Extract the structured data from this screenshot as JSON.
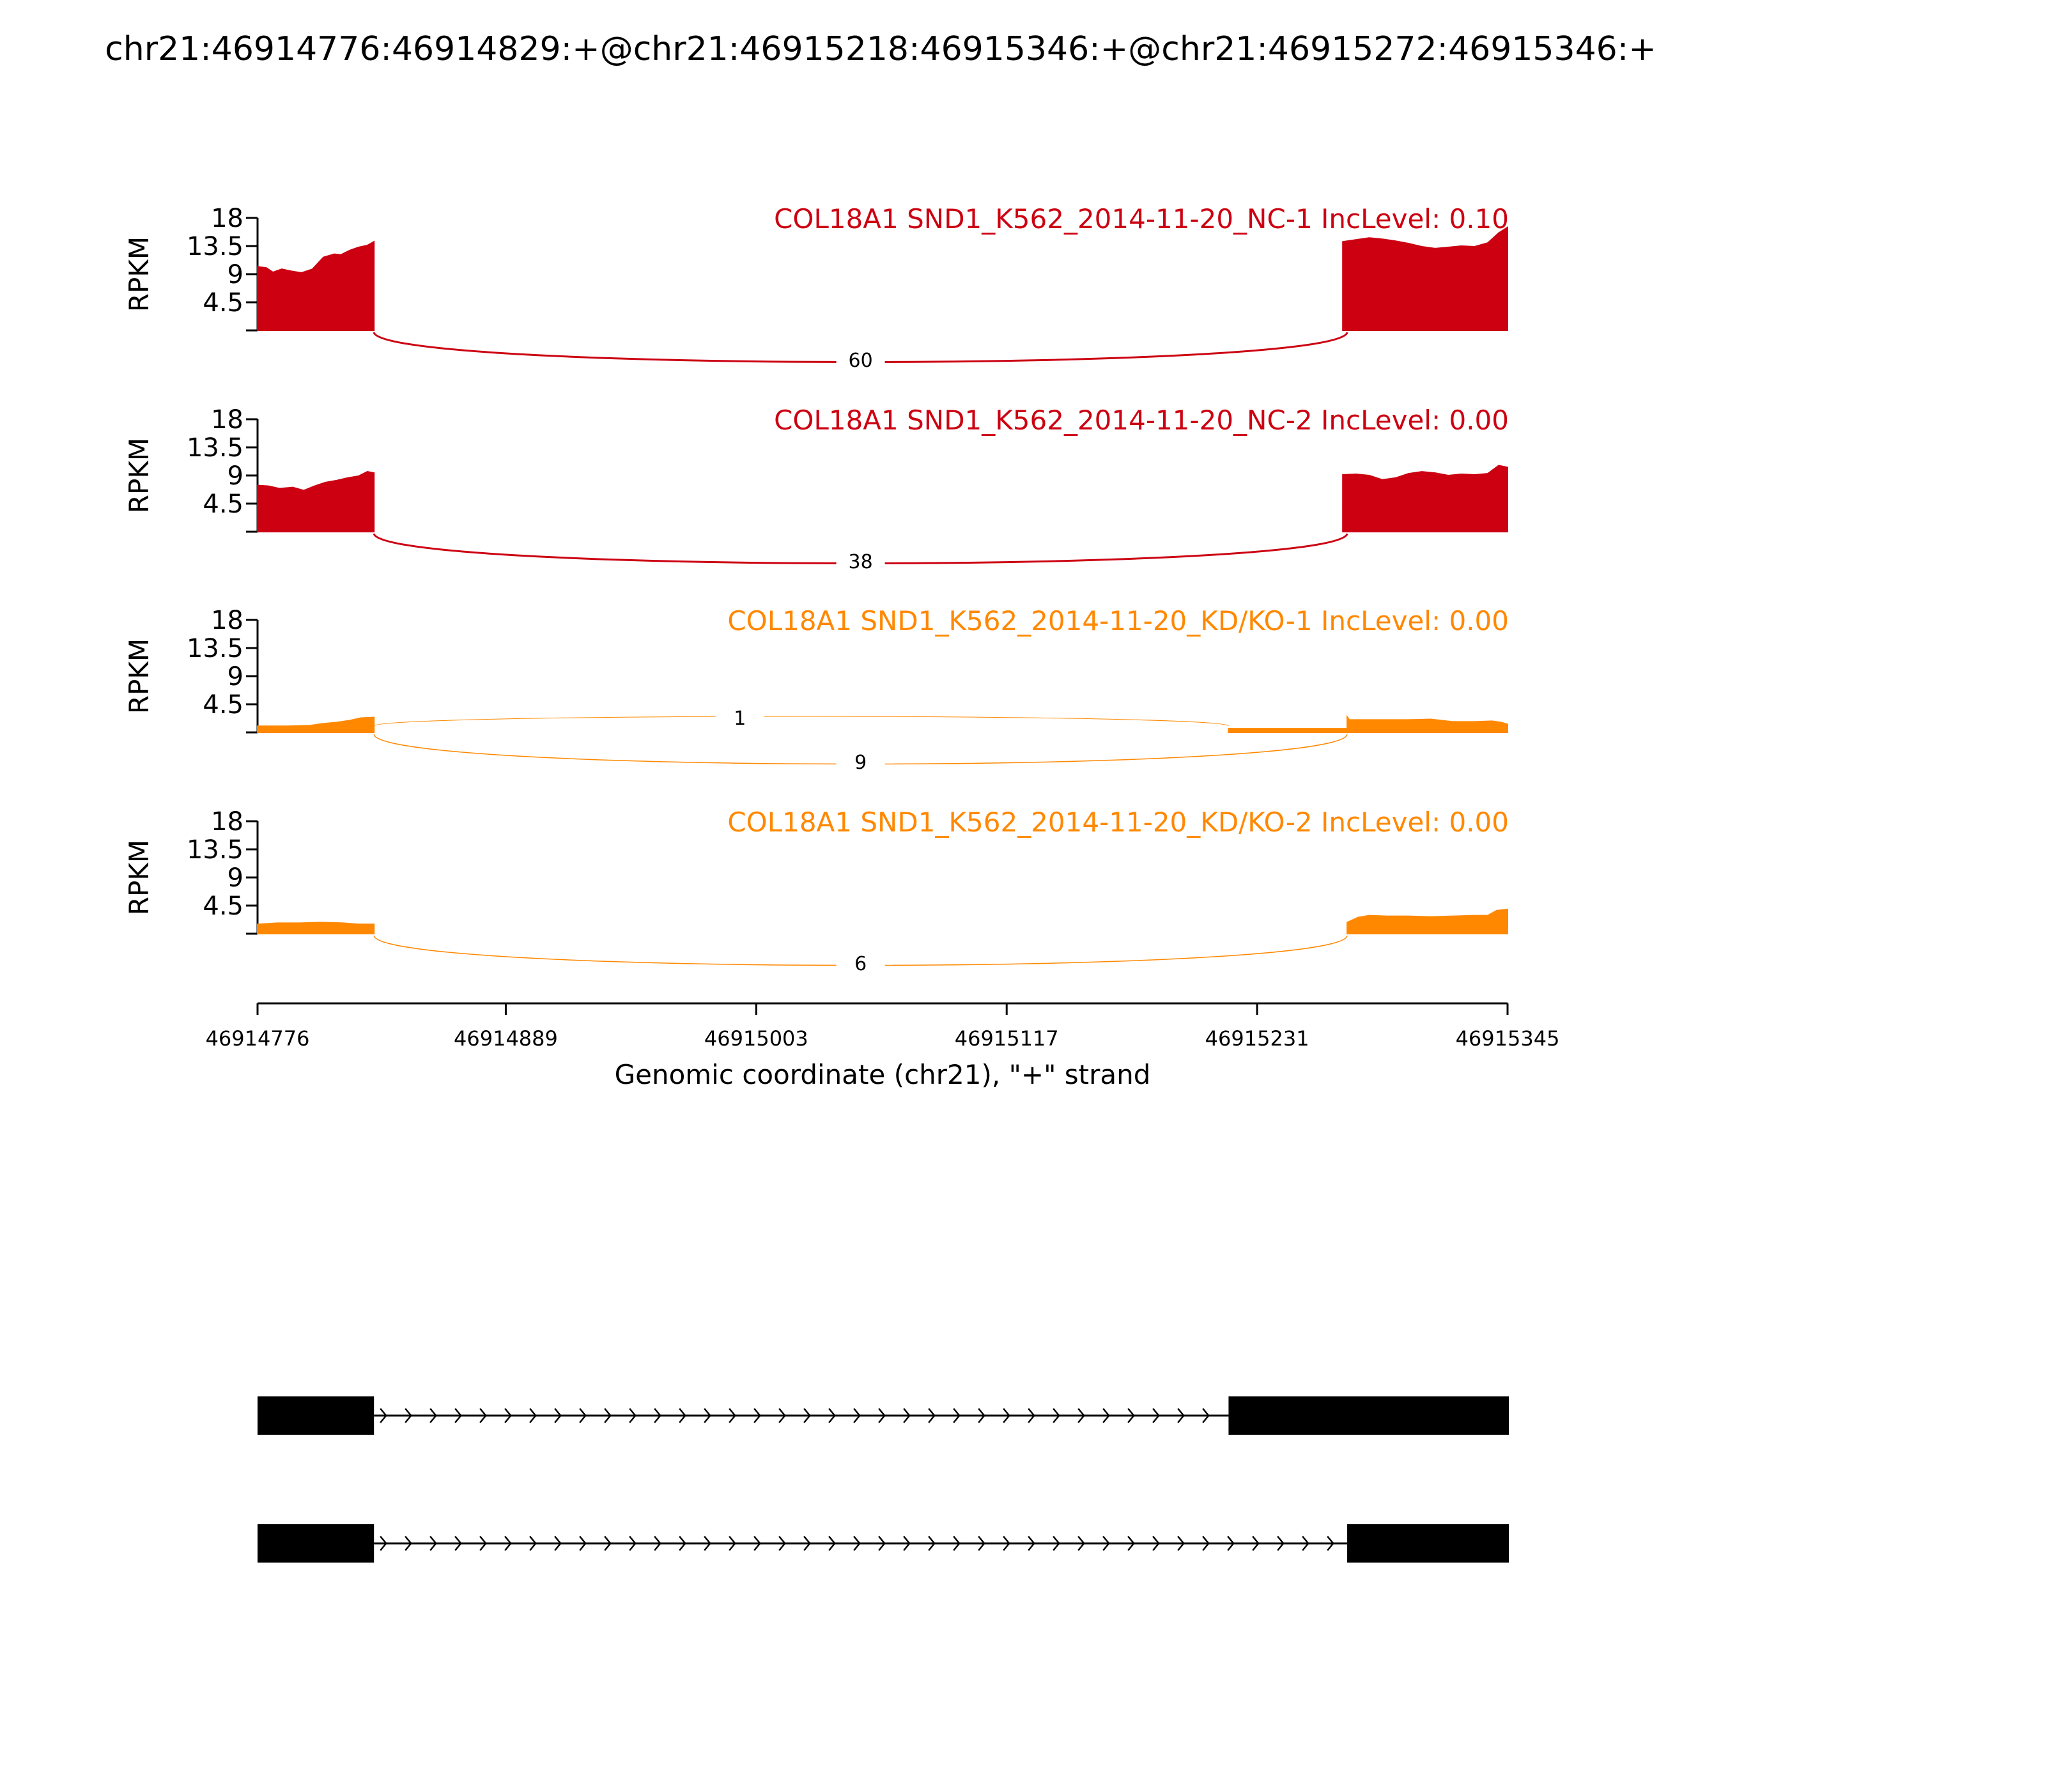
{
  "title": "chr21:46914776:46914829:+@chr21:46915218:46915346:+@chr21:46915272:46915346:+",
  "chart_data": {
    "type": "area",
    "title": "chr21:46914776:46914829:+@chr21:46915218:46915346:+@chr21:46915272:46915346:+",
    "xlabel": "Genomic coordinate (chr21), \"+\" strand",
    "xlim": [
      46914776,
      46915345
    ],
    "xticks": [
      46914776,
      46914889,
      46915003,
      46915117,
      46915231,
      46915345
    ],
    "ylabel": "RPKM",
    "ylim": [
      0,
      18
    ],
    "yticks": [
      4.5,
      9,
      13.5,
      18
    ],
    "ytick_labels": [
      "4.5",
      "9",
      "13.5",
      "18"
    ],
    "tracks": [
      {
        "name": "COL18A1 SND1_K562_2014-11-20_NC-1 IncLevel: 0.10",
        "color": "#cc0011",
        "coverage": [
          {
            "x": [
              46914776,
              46914780,
              46914783,
              46914787,
              46914791,
              46914796,
              46914801,
              46914806,
              46914811,
              46914814,
              46914818,
              46914822,
              46914826,
              46914829
            ],
            "y": [
              10.2,
              10.0,
              9.3,
              9.8,
              9.5,
              9.2,
              9.8,
              11.7,
              12.2,
              12.1,
              12.8,
              13.3,
              13.6,
              14.2
            ]
          },
          {
            "x": [
              46915270,
              46915276,
              46915282,
              46915288,
              46915294,
              46915300,
              46915306,
              46915312,
              46915318,
              46915324,
              46915330,
              46915336,
              46915341,
              46915345
            ],
            "y": [
              14.2,
              14.5,
              14.8,
              14.6,
              14.3,
              13.9,
              13.4,
              13.1,
              13.3,
              13.5,
              13.4,
              14.0,
              15.6,
              16.5
            ]
          }
        ],
        "junctions": [
          {
            "from": 46914829,
            "to": 46915272,
            "count": "60",
            "side": "below"
          }
        ]
      },
      {
        "name": "COL18A1 SND1_K562_2014-11-20_NC-2 IncLevel: 0.00",
        "color": "#cc0011",
        "coverage": [
          {
            "x": [
              46914776,
              46914781,
              46914786,
              46914792,
              46914797,
              46914802,
              46914807,
              46914812,
              46914817,
              46914822,
              46914826,
              46914829
            ],
            "y": [
              7.4,
              7.3,
              6.9,
              7.1,
              6.6,
              7.3,
              7.9,
              8.2,
              8.6,
              8.9,
              9.6,
              9.4
            ]
          },
          {
            "x": [
              46915270,
              46915276,
              46915282,
              46915288,
              46915294,
              46915300,
              46915306,
              46915312,
              46915318,
              46915324,
              46915330,
              46915336,
              46915341,
              46915345
            ],
            "y": [
              9.1,
              9.2,
              9.0,
              8.3,
              8.6,
              9.3,
              9.6,
              9.4,
              9.0,
              9.2,
              9.1,
              9.3,
              10.6,
              10.3
            ]
          }
        ],
        "junctions": [
          {
            "from": 46914829,
            "to": 46915272,
            "count": "38",
            "side": "below"
          }
        ]
      },
      {
        "name": "COL18A1 SND1_K562_2014-11-20_KD/KO-1 IncLevel: 0.00",
        "color": "#ff8800",
        "coverage": [
          {
            "x": [
              46914776,
              46914790,
              46914800,
              46914806,
              46914812,
              46914818,
              46914823,
              46914829
            ],
            "y": [
              1.0,
              1.0,
              1.1,
              1.4,
              1.6,
              1.9,
              2.3,
              2.4
            ]
          },
          {
            "x": [
              46915218,
              46915230,
              46915245,
              46915258,
              46915272
            ],
            "y": [
              0.6,
              0.6,
              0.6,
              0.6,
              0.6
            ]
          },
          {
            "x": [
              46915272,
              46915273,
              46915280,
              46915290,
              46915300,
              46915310,
              46915320,
              46915330,
              46915338,
              46915342,
              46915345
            ],
            "y": [
              2.5,
              2.0,
              2.0,
              2.0,
              2.0,
              2.1,
              1.7,
              1.7,
              1.8,
              1.6,
              1.3
            ]
          }
        ],
        "junctions": [
          {
            "from": 46914829,
            "to": 46915218,
            "count": "1",
            "side": "above"
          },
          {
            "from": 46914829,
            "to": 46915272,
            "count": "9",
            "side": "below"
          }
        ]
      },
      {
        "name": "COL18A1 SND1_K562_2014-11-20_KD/KO-2 IncLevel: 0.00",
        "color": "#ff8800",
        "coverage": [
          {
            "x": [
              46914776,
              46914785,
              46914795,
              46914805,
              46914815,
              46914822,
              46914829
            ],
            "y": [
              1.5,
              1.7,
              1.7,
              1.8,
              1.7,
              1.5,
              1.5
            ]
          },
          {
            "x": [
              46915272,
              46915277,
              46915282,
              46915290,
              46915300,
              46915310,
              46915320,
              46915330,
              46915336,
              46915340,
              46915345
            ],
            "y": [
              1.8,
              2.6,
              2.9,
              2.8,
              2.8,
              2.7,
              2.8,
              2.9,
              2.9,
              3.7,
              3.9
            ]
          }
        ],
        "junctions": [
          {
            "from": 46914829,
            "to": 46915272,
            "count": "6",
            "side": "below"
          }
        ]
      }
    ],
    "isoforms": [
      {
        "exons": [
          [
            46914776,
            46914829
          ],
          [
            46915218,
            46915346
          ]
        ]
      },
      {
        "exons": [
          [
            46914776,
            46914829
          ],
          [
            46915272,
            46915346
          ]
        ]
      }
    ]
  }
}
